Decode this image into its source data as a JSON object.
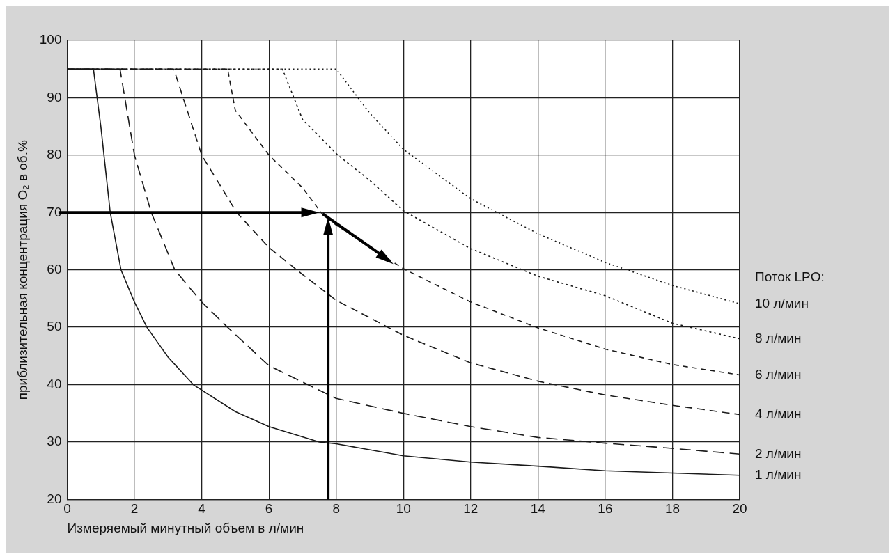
{
  "chart_data": {
    "type": "line",
    "xlabel": "Измеряемый минутный объем в л/мин",
    "ylabel": "приблизительная концентрация O₂ в об.%",
    "legend_title": "Поток LPO:",
    "xlim": [
      0,
      20
    ],
    "xticks": [
      0,
      2,
      4,
      6,
      8,
      10,
      12,
      14,
      16,
      18,
      20
    ],
    "ylim": [
      20,
      100
    ],
    "yticks": [
      20,
      30,
      40,
      50,
      60,
      70,
      80,
      90,
      100
    ],
    "grid": true,
    "legend": false,
    "marker": "none",
    "series": [
      {
        "name": "1 л/мин",
        "color": "#1a1a1a",
        "line_style": "solid",
        "x": [
          0,
          0.78,
          1.0,
          1.28,
          1.6,
          2,
          2.37,
          3,
          3.75,
          5,
          6,
          7.5,
          8,
          10,
          12,
          14,
          16,
          18,
          20
        ],
        "values": [
          95,
          95,
          85,
          70,
          60,
          54.4,
          50,
          44.8,
          40,
          35.3,
          32.7,
          30,
          29.7,
          27.6,
          26.5,
          25.8,
          25,
          24.6,
          24.2
        ]
      },
      {
        "name": "2 л/мин",
        "color": "#1a1a1a",
        "line_style": "dashed",
        "x": [
          0,
          1.57,
          2,
          2.5,
          3.2,
          4,
          4.77,
          6,
          8,
          10,
          12,
          14,
          16,
          18,
          20
        ],
        "values": [
          95,
          95,
          80,
          70,
          60,
          54.4,
          50,
          43.3,
          37.6,
          35,
          32.7,
          30.8,
          29.8,
          28.9,
          27.9
        ]
      },
      {
        "name": "4 л/мин",
        "color": "#1a1a1a",
        "line_style": "dashed",
        "x": [
          0,
          3.17,
          4,
          5.04,
          6,
          7,
          8,
          10,
          12,
          14,
          16,
          18,
          20
        ],
        "values": [
          95,
          95,
          80,
          70,
          63.9,
          59.2,
          54.7,
          48.6,
          43.8,
          40.6,
          38.2,
          36.4,
          34.8
        ]
      },
      {
        "name": "6 л/мин",
        "color": "#1a1a1a",
        "line_style": "dashed",
        "x": [
          0,
          4.77,
          5,
          6,
          7,
          7.55,
          8,
          10,
          12,
          14,
          16,
          18,
          20
        ],
        "values": [
          95,
          95,
          87.8,
          80,
          74.3,
          70,
          67.8,
          60.2,
          54.4,
          49.9,
          46.2,
          43.5,
          41.7
        ]
      },
      {
        "name": "8 л/мин",
        "color": "#1a1a1a",
        "line_style": "dotted",
        "x": [
          0,
          6.4,
          7,
          8.05,
          9,
          10,
          12,
          14,
          16,
          18,
          20
        ],
        "values": [
          95,
          95,
          86.2,
          80,
          75.6,
          70.3,
          63.7,
          58.9,
          55.5,
          50.7,
          48
        ]
      },
      {
        "name": "10 л/мин",
        "color": "#1a1a1a",
        "line_style": "dotted",
        "x": [
          0,
          8,
          9,
          10,
          12,
          14,
          16,
          18,
          20
        ],
        "values": [
          95,
          95,
          87.3,
          81,
          72.4,
          66.3,
          61.3,
          57.3,
          54.1
        ]
      }
    ]
  }
}
